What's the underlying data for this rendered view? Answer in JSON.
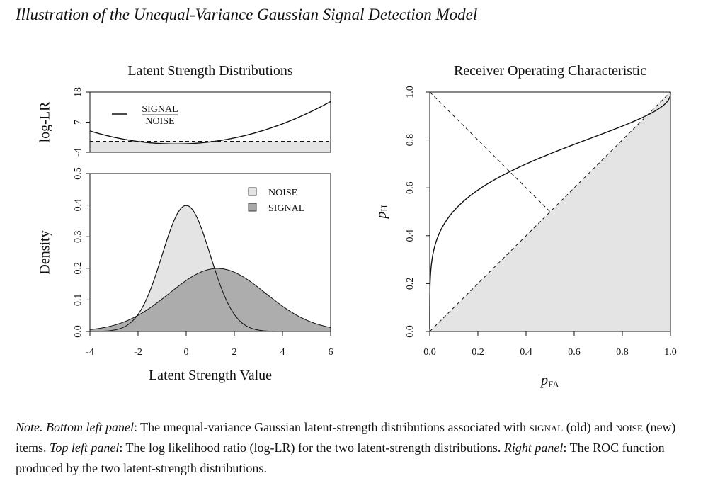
{
  "figure_title": "Illustration of the Unequal-Variance Gaussian Signal Detection Model",
  "note": {
    "lead": "Note.",
    "bottom_left_label": "Bottom left panel",
    "bottom_left_text_1": ": The unequal-variance Gaussian latent-strength distributions associated with ",
    "signal_word": "signal",
    "bottom_left_text_2": " (old) and ",
    "noise_word": "noise",
    "bottom_left_text_3": " (new) items. ",
    "top_left_label": "Top left panel",
    "top_left_text": ": The log likelihood ratio (log-LR) for the two latent-strength distributions. ",
    "right_label": "Right panel",
    "right_text": ": The ROC function produced by the two latent-strength distributions."
  },
  "chart_data": [
    {
      "id": "loglr",
      "type": "line",
      "title": "Latent Strength Distributions",
      "ylabel": "log-LR",
      "xlim": [
        -4,
        6
      ],
      "ylim": [
        -4,
        18
      ],
      "yticks": [
        -4,
        7,
        18
      ],
      "legend": {
        "label_top": "SIGNAL",
        "label_bottom": "NOISE",
        "placement": "top-left"
      },
      "series": [
        {
          "role": "log-likelihood-ratio",
          "noise_mean": 0,
          "noise_sd": 1,
          "signal_mean": 1.3,
          "signal_sd": 2
        }
      ],
      "reference_line_y": 0,
      "colors": {
        "fill": "#e4e4e4",
        "line": "#111111"
      }
    },
    {
      "id": "density",
      "type": "area",
      "xlabel": "Latent Strength Value",
      "ylabel": "Density",
      "xlim": [
        -4,
        6
      ],
      "ylim": [
        0,
        0.5
      ],
      "xticks": [
        -4,
        -2,
        0,
        2,
        4,
        6
      ],
      "yticks": [
        0.0,
        0.1,
        0.2,
        0.3,
        0.4,
        0.5
      ],
      "legend_placement": "top-right",
      "series": [
        {
          "name": "NOISE",
          "mean": 0,
          "sd": 1,
          "peak": 0.4,
          "color": "#e4e4e4"
        },
        {
          "name": "SIGNAL",
          "mean": 1.3,
          "sd": 2,
          "peak": 0.2,
          "color": "#a9a9a9"
        }
      ]
    },
    {
      "id": "roc",
      "type": "line",
      "title": "Receiver Operating Characteristic",
      "xlabel_main": "p",
      "xlabel_sub": "FA",
      "ylabel_main": "p",
      "ylabel_sub": "H",
      "xlim": [
        0,
        1
      ],
      "ylim": [
        0,
        1
      ],
      "xticks": [
        0.0,
        0.2,
        0.4,
        0.6,
        0.8,
        1.0
      ],
      "yticks": [
        0.0,
        0.2,
        0.4,
        0.6,
        0.8,
        1.0
      ],
      "series": [
        {
          "role": "roc-curve",
          "noise_mean": 0,
          "noise_sd": 1,
          "signal_mean": 1.3,
          "signal_sd": 2
        },
        {
          "role": "chance-diagonal",
          "x": [
            0,
            1
          ],
          "y": [
            0,
            1
          ]
        },
        {
          "role": "minor-diagonal",
          "x": [
            0,
            0.5
          ],
          "y": [
            1,
            0.5
          ]
        }
      ],
      "colors": {
        "fill": "#e4e4e4",
        "line": "#111111"
      }
    }
  ]
}
